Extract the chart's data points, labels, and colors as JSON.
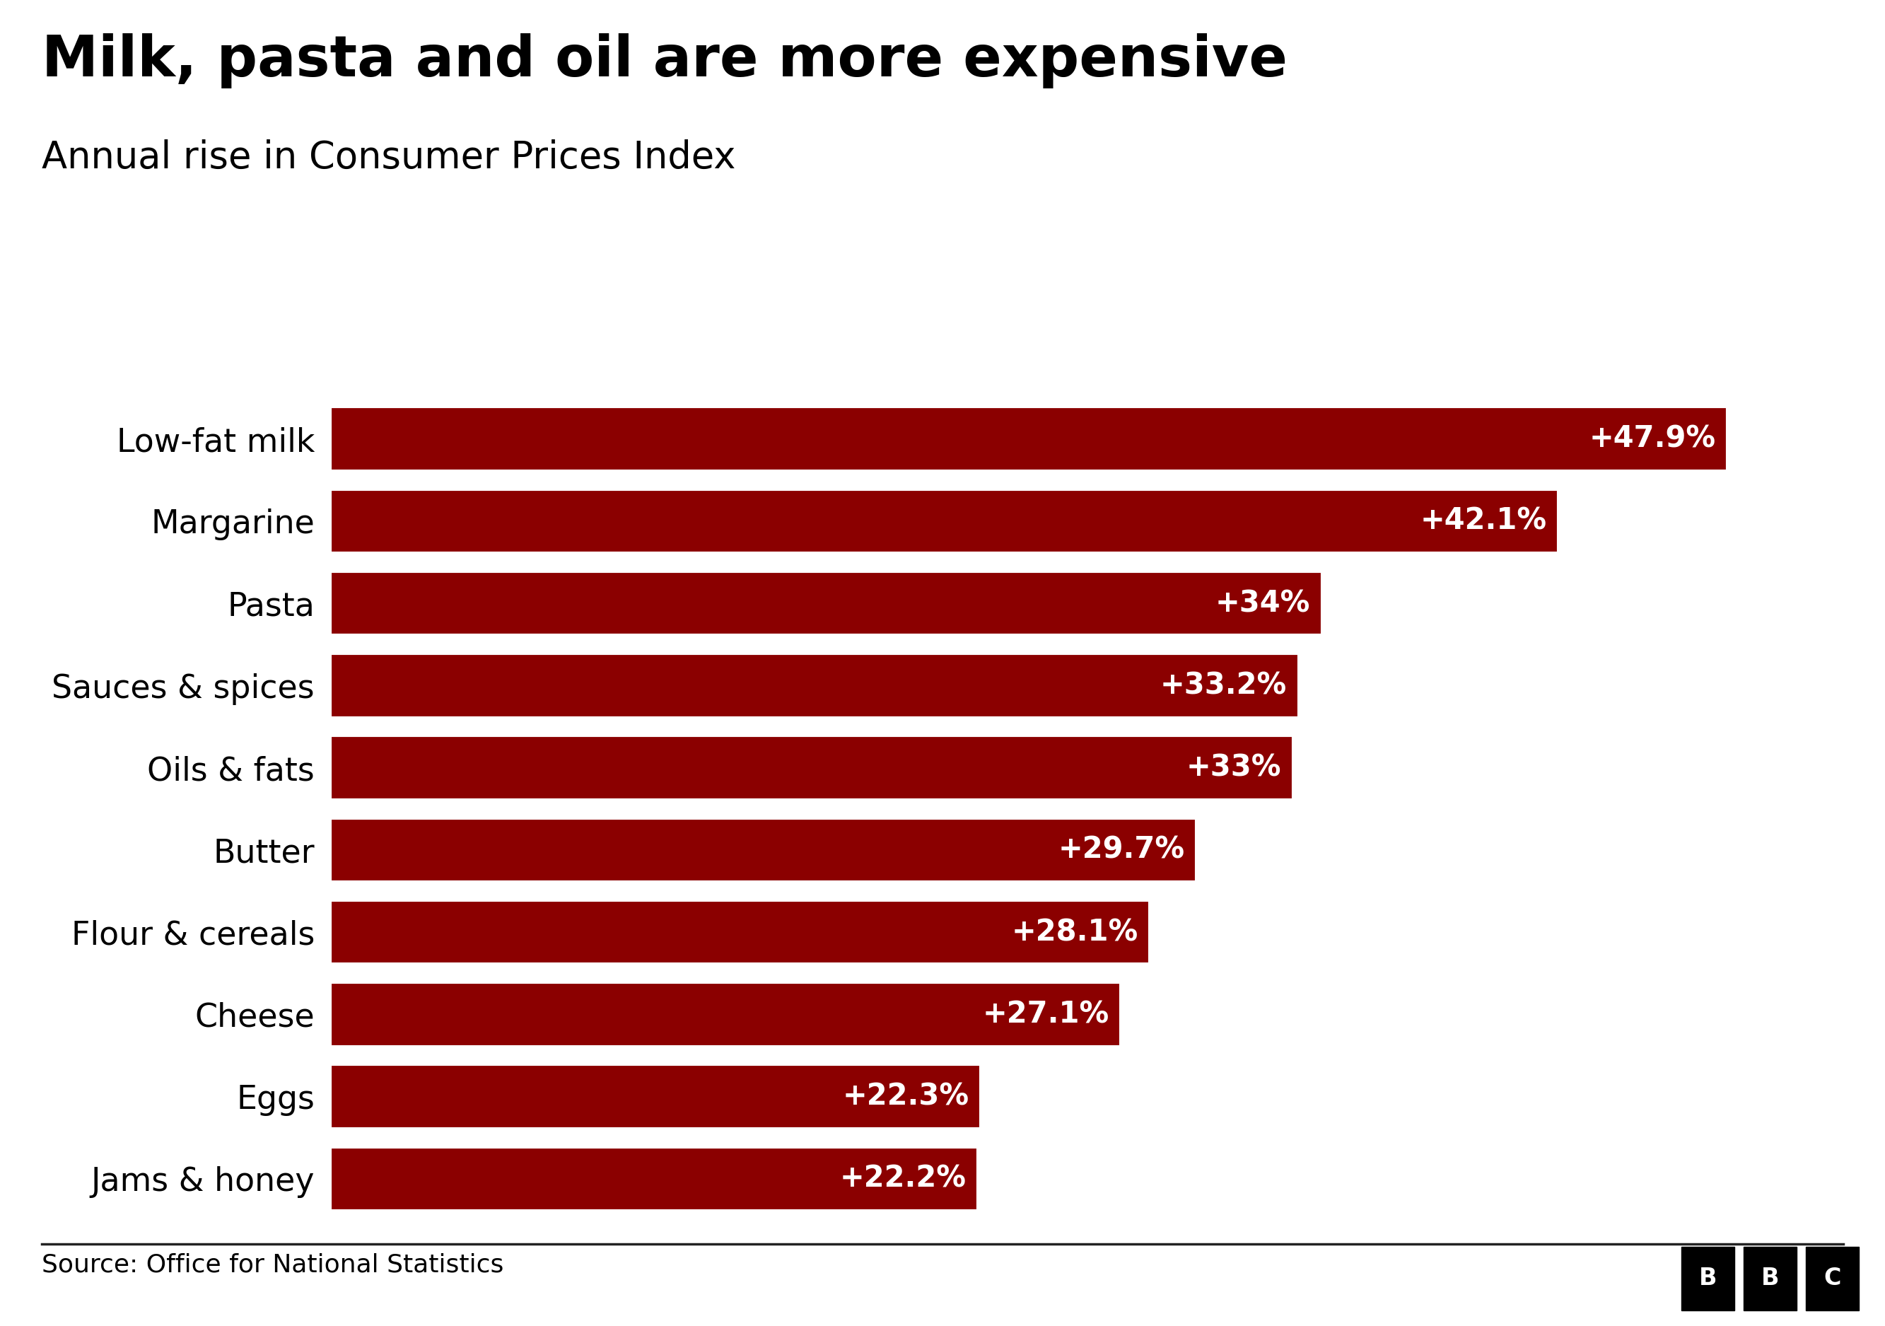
{
  "title": "Milk, pasta and oil are more expensive",
  "subtitle": "Annual rise in Consumer Prices Index",
  "source": "Source: Office for National Statistics",
  "categories": [
    "Jams & honey",
    "Eggs",
    "Cheese",
    "Flour & cereals",
    "Butter",
    "Oils & fats",
    "Sauces & spices",
    "Pasta",
    "Margarine",
    "Low-fat milk"
  ],
  "values": [
    22.2,
    22.3,
    27.1,
    28.1,
    29.7,
    33.0,
    33.2,
    34.0,
    42.1,
    47.9
  ],
  "labels": [
    "+22.2%",
    "+22.3%",
    "+27.1%",
    "+28.1%",
    "+29.7%",
    "+33%",
    "+33.2%",
    "+34%",
    "+42.1%",
    "+47.9%"
  ],
  "bar_color": "#8B0000",
  "bar_gap_color": "#ffffff",
  "label_color": "#ffffff",
  "title_color": "#000000",
  "subtitle_color": "#000000",
  "source_color": "#000000",
  "background_color": "#ffffff",
  "title_fontsize": 58,
  "subtitle_fontsize": 38,
  "label_fontsize": 30,
  "category_fontsize": 33,
  "source_fontsize": 26,
  "xlim": [
    0,
    52
  ],
  "bbc_box_color": "#000000",
  "bbc_text_color": "#ffffff"
}
